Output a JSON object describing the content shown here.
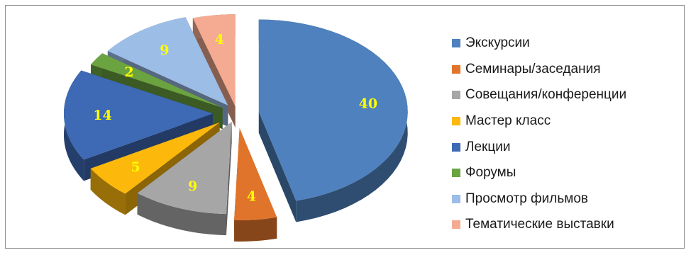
{
  "chart_data": {
    "type": "pie",
    "style": "3d-exploded",
    "title": "",
    "categories": [
      "Экскурсии",
      "Семинары/заседания",
      "Совещания/конференции",
      "Мастер класс",
      "Лекции",
      "Форумы",
      "Просмотр фильмов",
      "Тематические выставки"
    ],
    "values": [
      40,
      4,
      9,
      5,
      14,
      2,
      9,
      4
    ],
    "colors": [
      "#4e81bd",
      "#e1742b",
      "#a6a6a6",
      "#fcb80b",
      "#3d69b5",
      "#6ba341",
      "#9cbde6",
      "#f4ab91"
    ],
    "data_label_color": "#ffff00",
    "legend_position": "right"
  }
}
